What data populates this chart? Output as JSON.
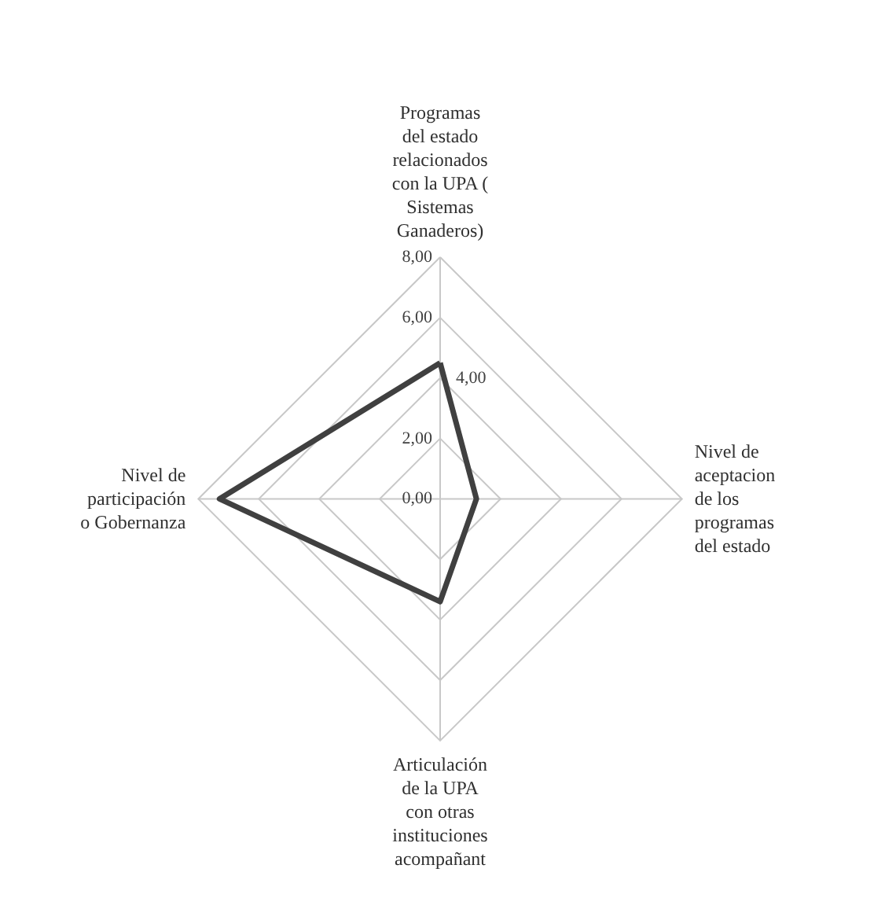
{
  "chart_data": {
    "type": "radar",
    "categories": [
      "Programas del estado relacionados con la UPA ( Sistemas Ganaderos)",
      "Nivel de aceptacion de los programas del estado",
      "Articulación de la UPA con otras instituciones acompañant",
      "Nivel de participación o Gobernanza"
    ],
    "series": [
      {
        "color": "#404040",
        "values": [
          4.5,
          1.2,
          3.4,
          7.3
        ]
      }
    ],
    "ylim": [
      0,
      8
    ],
    "yticks": [
      {
        "value": 0,
        "label": "0,00"
      },
      {
        "value": 2,
        "label": "2,00"
      },
      {
        "value": 4,
        "label": "4,00"
      },
      {
        "value": 6,
        "label": "6,00"
      },
      {
        "value": 8,
        "label": "8,00"
      }
    ],
    "grid": true
  }
}
